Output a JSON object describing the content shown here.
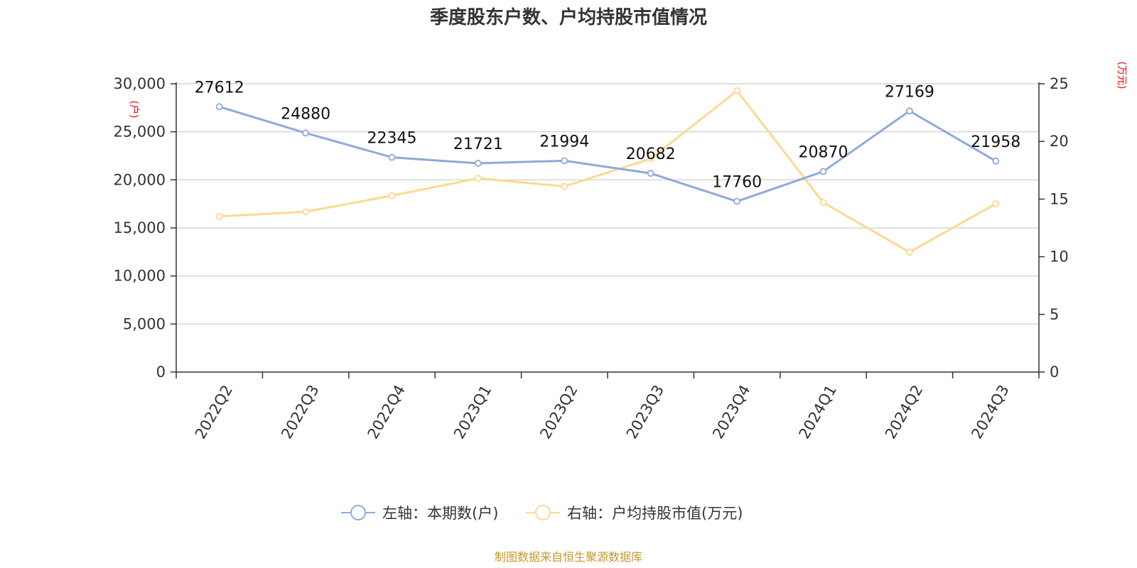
{
  "chart_data": {
    "type": "line",
    "title": "季度股东户数、户均持股市值情况",
    "categories": [
      "2022Q2",
      "2022Q3",
      "2022Q4",
      "2023Q1",
      "2023Q2",
      "2023Q3",
      "2023Q4",
      "2024Q1",
      "2024Q2",
      "2024Q3"
    ],
    "y_left": {
      "unit": "(户)",
      "range": [
        0,
        30000
      ],
      "ticks": [
        "0",
        "5,000",
        "10,000",
        "15,000",
        "20,000",
        "25,000",
        "30,000"
      ],
      "tick_values": [
        0,
        5000,
        10000,
        15000,
        20000,
        25000,
        30000
      ]
    },
    "y_right": {
      "unit": "(万元)",
      "range": [
        0,
        25
      ],
      "ticks": [
        "0",
        "5",
        "10",
        "15",
        "20",
        "25"
      ],
      "tick_values": [
        0,
        5,
        10,
        15,
        20,
        25
      ]
    },
    "series": [
      {
        "name": "左轴：本期数(户)",
        "axis": "left",
        "color": "#8eaad9",
        "values": [
          27612,
          24880,
          22345,
          21721,
          21994,
          20682,
          17760,
          20870,
          27169,
          21958
        ],
        "labels": [
          "27612",
          "24880",
          "22345",
          "21721",
          "21994",
          "20682",
          "17760",
          "20870",
          "27169",
          "21958"
        ]
      },
      {
        "name": "右轴：户均持股市值(万元)",
        "axis": "right",
        "color": "#fcd991",
        "values": [
          13.5,
          13.9,
          15.3,
          16.8,
          16.1,
          18.5,
          24.4,
          14.7,
          10.4,
          14.6
        ]
      }
    ],
    "grid": true,
    "legend_position": "bottom-center"
  },
  "footer": {
    "source": "制图数据来自恒生聚源数据库"
  }
}
